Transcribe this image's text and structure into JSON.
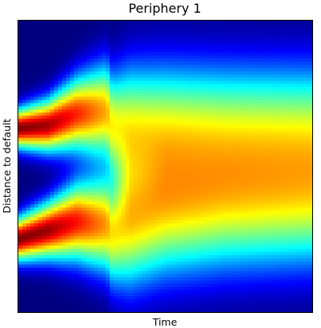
{
  "chart_data": {
    "type": "heatmap",
    "title": "Periphery 1",
    "xlabel": "Time",
    "ylabel": "Distance to default",
    "colormap": "jet",
    "colormap_stops": [
      "#00007f",
      "#0000ff",
      "#00ffff",
      "#7fff7f",
      "#ffff00",
      "#ff0000",
      "#7f0000"
    ],
    "x_ticks": [],
    "y_ticks": [],
    "grid": false,
    "legend": "none",
    "x_range": [
      0,
      1
    ],
    "y_range": [
      0,
      1
    ],
    "bands": [
      {
        "time": [
          0.0,
          0.1,
          0.2,
          0.3,
          0.32,
          0.38,
          0.5,
          0.7,
          1.0
        ],
        "center": [
          0.37,
          0.36,
          0.32,
          0.31,
          0.36,
          0.37,
          0.37,
          0.37,
          0.37
        ],
        "width": [
          0.045,
          0.06,
          0.085,
          0.11,
          0.12,
          0.145,
          0.15,
          0.15,
          0.15
        ],
        "intensity": [
          1.0,
          0.97,
          0.86,
          0.72,
          0.64,
          0.62,
          0.58,
          0.54,
          0.52
        ]
      },
      {
        "time": [
          0.0,
          0.1,
          0.2,
          0.3,
          0.32,
          0.38,
          0.5,
          0.7,
          1.0
        ],
        "center": [
          0.75,
          0.72,
          0.69,
          0.7,
          0.73,
          0.7,
          0.66,
          0.64,
          0.63
        ],
        "width": [
          0.05,
          0.065,
          0.09,
          0.11,
          0.12,
          0.145,
          0.15,
          0.15,
          0.15
        ],
        "intensity": [
          1.0,
          0.98,
          0.88,
          0.74,
          0.66,
          0.66,
          0.62,
          0.58,
          0.55
        ]
      }
    ]
  }
}
